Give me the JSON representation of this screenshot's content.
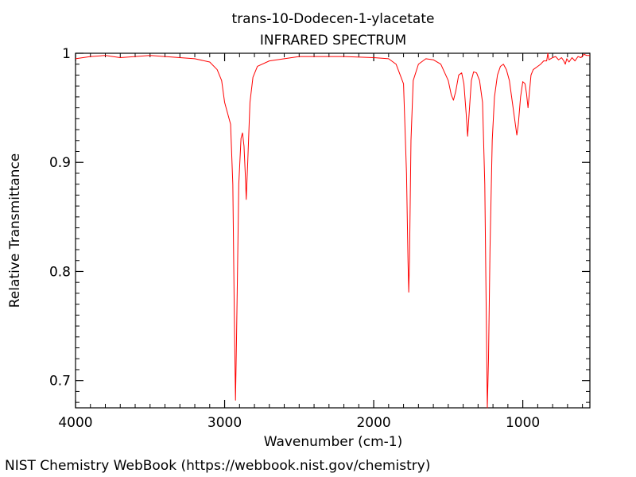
{
  "chart_data": {
    "type": "line",
    "title": "trans-10-Dodecen-1-ylacetate",
    "subtitle": "INFRARED SPECTRUM",
    "xlabel": "Wavenumber (cm-1)",
    "ylabel": "Relative Transmittance",
    "xlim": [
      4000,
      550
    ],
    "x_reversed": true,
    "ylim": [
      0.675,
      1.0
    ],
    "x_ticks": [
      4000,
      3000,
      2000,
      1000
    ],
    "x_tick_labels": [
      "4000",
      "3000",
      "2000",
      "1000"
    ],
    "y_ticks": [
      0.7,
      0.8,
      0.9,
      1.0
    ],
    "y_tick_labels": [
      "0.7",
      "0.8",
      "0.9",
      "1"
    ],
    "grid": false,
    "series": [
      {
        "color": "#ff0000",
        "points": [
          [
            4000,
            0.995
          ],
          [
            3900,
            0.997
          ],
          [
            3800,
            0.998
          ],
          [
            3700,
            0.996
          ],
          [
            3600,
            0.997
          ],
          [
            3500,
            0.998
          ],
          [
            3400,
            0.997
          ],
          [
            3300,
            0.996
          ],
          [
            3200,
            0.995
          ],
          [
            3100,
            0.992
          ],
          [
            3050,
            0.985
          ],
          [
            3020,
            0.975
          ],
          [
            3000,
            0.955
          ],
          [
            2980,
            0.945
          ],
          [
            2960,
            0.935
          ],
          [
            2945,
            0.88
          ],
          [
            2935,
            0.76
          ],
          [
            2927,
            0.682
          ],
          [
            2920,
            0.74
          ],
          [
            2905,
            0.88
          ],
          [
            2890,
            0.922
          ],
          [
            2880,
            0.927
          ],
          [
            2870,
            0.915
          ],
          [
            2860,
            0.885
          ],
          [
            2855,
            0.866
          ],
          [
            2845,
            0.9
          ],
          [
            2830,
            0.955
          ],
          [
            2810,
            0.978
          ],
          [
            2780,
            0.988
          ],
          [
            2700,
            0.993
          ],
          [
            2500,
            0.997
          ],
          [
            2200,
            0.997
          ],
          [
            2000,
            0.996
          ],
          [
            1900,
            0.995
          ],
          [
            1850,
            0.99
          ],
          [
            1800,
            0.972
          ],
          [
            1780,
            0.89
          ],
          [
            1770,
            0.81
          ],
          [
            1765,
            0.781
          ],
          [
            1760,
            0.81
          ],
          [
            1750,
            0.92
          ],
          [
            1735,
            0.975
          ],
          [
            1700,
            0.99
          ],
          [
            1650,
            0.995
          ],
          [
            1600,
            0.994
          ],
          [
            1550,
            0.99
          ],
          [
            1500,
            0.975
          ],
          [
            1480,
            0.962
          ],
          [
            1465,
            0.957
          ],
          [
            1450,
            0.965
          ],
          [
            1430,
            0.98
          ],
          [
            1410,
            0.982
          ],
          [
            1395,
            0.972
          ],
          [
            1380,
            0.945
          ],
          [
            1370,
            0.924
          ],
          [
            1360,
            0.945
          ],
          [
            1345,
            0.975
          ],
          [
            1330,
            0.983
          ],
          [
            1310,
            0.982
          ],
          [
            1290,
            0.975
          ],
          [
            1270,
            0.955
          ],
          [
            1255,
            0.88
          ],
          [
            1245,
            0.76
          ],
          [
            1238,
            0.675
          ],
          [
            1230,
            0.72
          ],
          [
            1220,
            0.82
          ],
          [
            1205,
            0.92
          ],
          [
            1190,
            0.96
          ],
          [
            1170,
            0.98
          ],
          [
            1150,
            0.988
          ],
          [
            1130,
            0.99
          ],
          [
            1110,
            0.985
          ],
          [
            1090,
            0.975
          ],
          [
            1070,
            0.955
          ],
          [
            1055,
            0.94
          ],
          [
            1040,
            0.925
          ],
          [
            1030,
            0.935
          ],
          [
            1015,
            0.96
          ],
          [
            1000,
            0.974
          ],
          [
            985,
            0.972
          ],
          [
            975,
            0.963
          ],
          [
            965,
            0.95
          ],
          [
            955,
            0.965
          ],
          [
            945,
            0.98
          ],
          [
            930,
            0.985
          ],
          [
            900,
            0.988
          ],
          [
            880,
            0.99
          ],
          [
            860,
            0.993
          ],
          [
            840,
            0.993
          ],
          [
            832,
            1.0
          ],
          [
            825,
            0.994
          ],
          [
            800,
            0.996
          ],
          [
            780,
            0.997
          ],
          [
            760,
            0.994
          ],
          [
            740,
            0.996
          ],
          [
            725,
            0.993
          ],
          [
            715,
            0.99
          ],
          [
            705,
            0.995
          ],
          [
            690,
            0.992
          ],
          [
            670,
            0.996
          ],
          [
            650,
            0.993
          ],
          [
            630,
            0.997
          ],
          [
            610,
            0.996
          ],
          [
            590,
            0.999
          ],
          [
            570,
            0.998
          ],
          [
            550,
            0.998
          ]
        ]
      }
    ]
  },
  "footer": {
    "credit": "NIST Chemistry WebBook (https://webbook.nist.gov/chemistry)"
  }
}
